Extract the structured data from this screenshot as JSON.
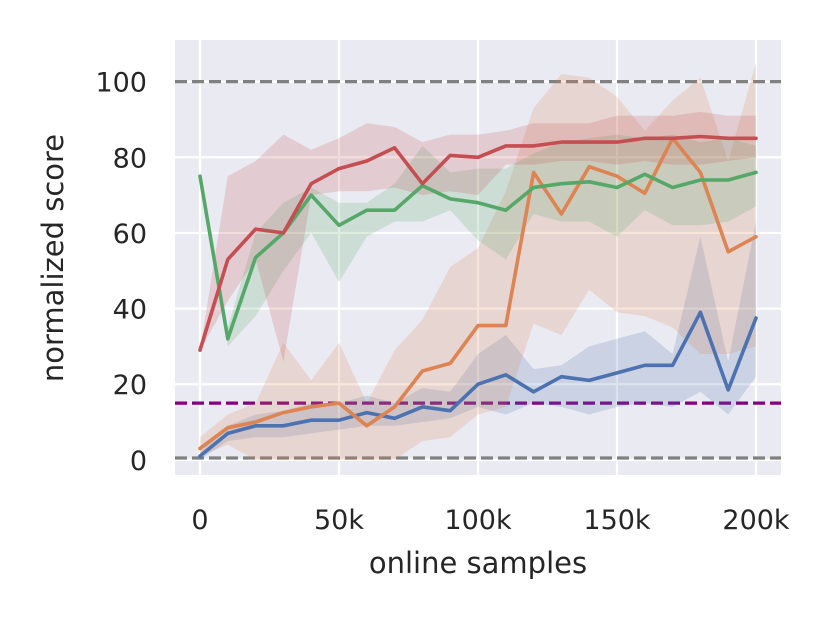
{
  "chart_data": {
    "type": "line",
    "title": "",
    "xlabel": "online samples",
    "ylabel": "normalized score",
    "xlim": [
      -9000,
      209000
    ],
    "ylim": [
      -4,
      111
    ],
    "grid": true,
    "legend": "none",
    "x_ticks": [
      {
        "value": 0,
        "label": "0"
      },
      {
        "value": 50000,
        "label": "50k"
      },
      {
        "value": 100000,
        "label": "100k"
      },
      {
        "value": 150000,
        "label": "150k"
      },
      {
        "value": 200000,
        "label": "200k"
      }
    ],
    "y_ticks": [
      {
        "value": 0,
        "label": "0"
      },
      {
        "value": 20,
        "label": "20"
      },
      {
        "value": 40,
        "label": "40"
      },
      {
        "value": 60,
        "label": "60"
      },
      {
        "value": 80,
        "label": "80"
      },
      {
        "value": 100,
        "label": "100"
      }
    ],
    "reference_lines": [
      {
        "y": 100,
        "color": "#808080",
        "style": "dashed"
      },
      {
        "y": 15,
        "color": "#800080",
        "style": "dashed"
      },
      {
        "y": 0.5,
        "color": "#808080",
        "style": "dashed"
      }
    ],
    "x": [
      0,
      10000,
      20000,
      30000,
      40000,
      50000,
      60000,
      70000,
      80000,
      90000,
      100000,
      110000,
      120000,
      130000,
      140000,
      150000,
      160000,
      170000,
      180000,
      190000,
      200000
    ],
    "series": [
      {
        "color": "#4c72b0",
        "values": [
          1,
          7,
          9,
          9,
          10.5,
          10.5,
          12.5,
          11,
          14,
          13,
          20,
          22.5,
          18,
          22,
          21,
          23,
          25,
          25,
          39,
          18.5,
          37.5
        ],
        "lower": [
          0,
          5,
          6,
          6,
          7,
          8,
          9,
          9,
          10,
          11,
          14,
          12,
          15,
          14,
          12,
          14,
          15,
          14,
          18,
          12,
          22
        ],
        "upper": [
          2,
          9,
          12,
          13,
          15,
          15,
          17,
          15,
          19,
          18,
          28,
          33,
          24,
          25,
          30,
          32,
          34,
          28,
          59,
          26,
          63
        ]
      },
      {
        "color": "#dd8452",
        "values": [
          3,
          8.5,
          10,
          12.5,
          14,
          15,
          9,
          14,
          23.5,
          25.5,
          35.5,
          35.5,
          76,
          65,
          77.5,
          75,
          70.5,
          85,
          76,
          55,
          59
        ],
        "lower": [
          1,
          4,
          0,
          0,
          0,
          0,
          0,
          0,
          5,
          6,
          12,
          14,
          36,
          33,
          45,
          39,
          38,
          35,
          28,
          28,
          30
        ],
        "upper": [
          6,
          12,
          15,
          31,
          21,
          31,
          15,
          29,
          37,
          51,
          56,
          71,
          93,
          102,
          101,
          96,
          87,
          95,
          101,
          79,
          105
        ]
      },
      {
        "color": "#55a868",
        "values": [
          75,
          32,
          53.5,
          60,
          70,
          62,
          66,
          66,
          72.5,
          69,
          68,
          66,
          72,
          73,
          73.5,
          72,
          75.5,
          72,
          74,
          74,
          76
        ],
        "lower": [
          74,
          30,
          38,
          50,
          60,
          47,
          59,
          63,
          63,
          66,
          58,
          53,
          65,
          63,
          63,
          59,
          66,
          62,
          62,
          63,
          67
        ],
        "upper": [
          76,
          35,
          60,
          68,
          72,
          68,
          68,
          73,
          83,
          76,
          77,
          77,
          81,
          84,
          85,
          86,
          85,
          86,
          84,
          85,
          83
        ]
      },
      {
        "color": "#c44e52",
        "values": [
          29,
          53,
          61,
          60,
          73,
          77,
          79,
          82.5,
          73,
          80.5,
          80,
          83,
          83,
          84,
          84,
          84,
          85,
          85,
          85.5,
          85,
          85
        ],
        "lower": [
          29,
          42,
          53,
          26,
          70,
          71,
          71,
          72,
          70,
          71,
          70,
          78,
          78,
          79,
          79,
          78,
          79,
          78,
          78,
          79,
          80
        ],
        "upper": [
          29,
          75,
          79,
          86,
          82,
          85,
          89,
          88,
          84,
          86,
          86,
          87,
          89,
          89,
          89,
          91,
          91,
          91,
          92,
          91,
          91
        ]
      }
    ]
  }
}
